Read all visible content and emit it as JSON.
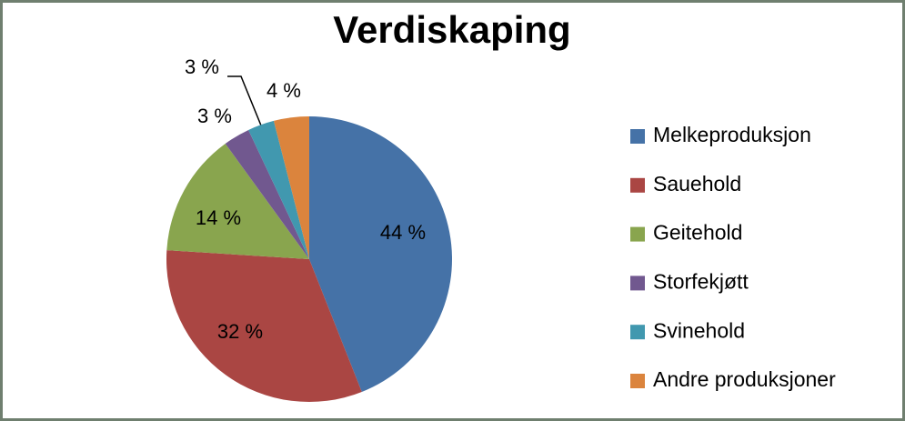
{
  "chart_data": {
    "type": "pie",
    "title": "Verdiskaping",
    "categories": [
      "Melkeproduksjon",
      "Sauehold",
      "Geitehold",
      "Storfekjøtt",
      "Svinehold",
      "Andre produksjoner"
    ],
    "values": [
      44,
      32,
      14,
      3,
      3,
      4
    ],
    "value_labels": [
      "44 %",
      "32 %",
      "14 %",
      "3 %",
      "3 %",
      "4 %"
    ],
    "colors": [
      "#4572a7",
      "#aa4643",
      "#89a54e",
      "#71588f",
      "#4198af",
      "#db843d"
    ],
    "legend": "right"
  }
}
